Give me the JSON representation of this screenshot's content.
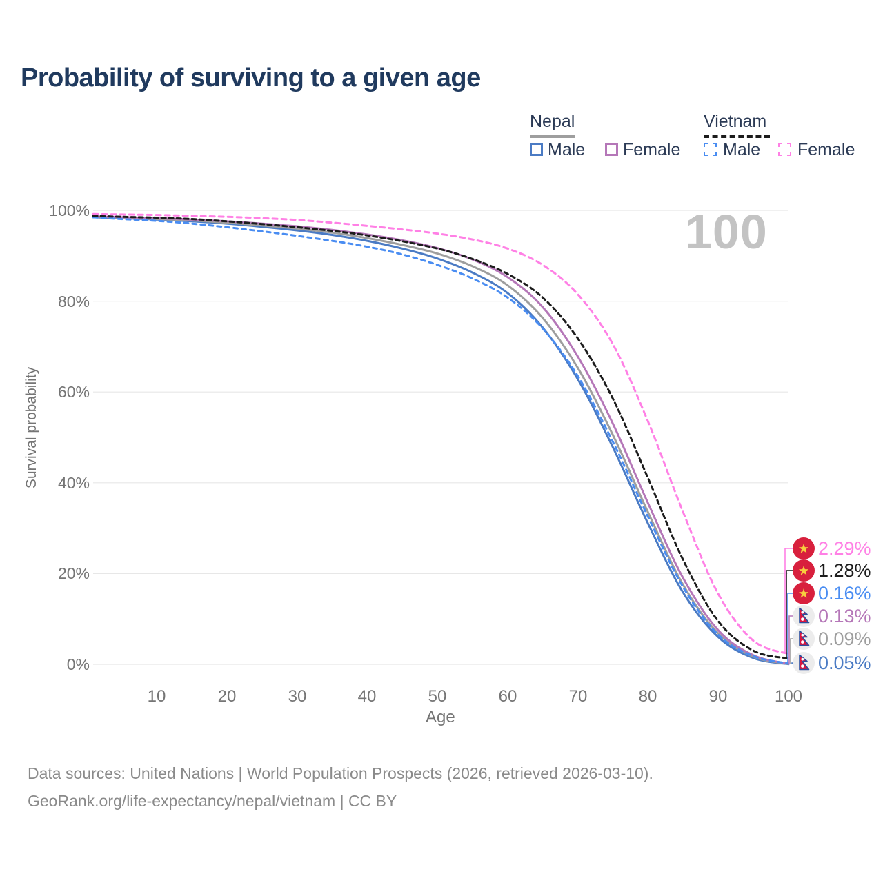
{
  "title": "Probability of surviving to a given age",
  "watermark": "100",
  "legend": {
    "groups": [
      {
        "label": "Nepal",
        "line_style": "solid",
        "line_color": "#9e9e9e",
        "items": [
          {
            "label": "Male",
            "color": "#4b7bc4",
            "dashed": false
          },
          {
            "label": "Female",
            "color": "#b577b8",
            "dashed": false
          }
        ]
      },
      {
        "label": "Vietnam",
        "line_style": "dashed",
        "line_color": "#1c1c1c",
        "items": [
          {
            "label": "Male",
            "color": "#4a8df2",
            "dashed": true
          },
          {
            "label": "Female",
            "color": "#ff80e5",
            "dashed": true
          }
        ]
      }
    ]
  },
  "axes": {
    "y": {
      "label": "Survival probability",
      "ticks": [
        "100%",
        "80%",
        "60%",
        "40%",
        "20%",
        "0%"
      ],
      "tick_values": [
        100,
        80,
        60,
        40,
        20,
        0
      ]
    },
    "x": {
      "label": "Age",
      "ticks": [
        "10",
        "20",
        "30",
        "40",
        "50",
        "60",
        "70",
        "80",
        "90",
        "100"
      ],
      "tick_values": [
        10,
        20,
        30,
        40,
        50,
        60,
        70,
        80,
        90,
        100
      ]
    }
  },
  "end_labels": [
    {
      "value": "2.29%",
      "color": "#ff80e5",
      "flag": "vietnam",
      "series": "Vietnam Female"
    },
    {
      "value": "1.28%",
      "color": "#1d1d1d",
      "flag": "vietnam",
      "series": "Vietnam"
    },
    {
      "value": "0.16%",
      "color": "#4a8df2",
      "flag": "vietnam",
      "series": "Vietnam Male"
    },
    {
      "value": "0.13%",
      "color": "#b577b8",
      "flag": "nepal",
      "series": "Nepal Female"
    },
    {
      "value": "0.09%",
      "color": "#9e9e9e",
      "flag": "nepal",
      "series": "Nepal"
    },
    {
      "value": "0.05%",
      "color": "#4b7bc4",
      "flag": "nepal",
      "series": "Nepal Male"
    }
  ],
  "footer": {
    "line1": "Data sources: United Nations | World Population Prospects (2026, retrieved 2026-03-10).",
    "line2": "GeoRank.org/life-expectancy/nepal/vietnam | CC BY"
  },
  "chart_data": {
    "type": "line",
    "title": "Probability of surviving to a given age",
    "xlabel": "Age",
    "ylabel": "Survival probability",
    "xlim": [
      0,
      100
    ],
    "ylim": [
      0,
      100
    ],
    "grid": "horizontal",
    "legend_position": "top-right",
    "x": [
      1,
      5,
      10,
      15,
      20,
      25,
      30,
      35,
      40,
      45,
      50,
      55,
      60,
      65,
      70,
      75,
      80,
      85,
      90,
      95,
      100
    ],
    "series": [
      {
        "name": "Nepal Male",
        "country": "Nepal",
        "sex": "Male",
        "color": "#4b7bc4",
        "dashed": false,
        "end_label": "0.05%",
        "values": [
          98.5,
          98.3,
          98.0,
          97.6,
          97.1,
          96.4,
          95.6,
          94.6,
          93.3,
          91.6,
          89.4,
          86.3,
          81.8,
          74.2,
          62.8,
          47.8,
          31.0,
          15.8,
          6.0,
          1.4,
          0.05
        ]
      },
      {
        "name": "Nepal",
        "country": "Nepal",
        "sex": "Both",
        "color": "#9e9e9e",
        "dashed": false,
        "end_label": "0.09%",
        "values": [
          98.6,
          98.4,
          98.1,
          97.8,
          97.3,
          96.7,
          96.0,
          95.1,
          93.9,
          92.4,
          90.5,
          87.7,
          83.5,
          76.3,
          65.3,
          50.5,
          33.5,
          17.5,
          6.8,
          1.7,
          0.09
        ]
      },
      {
        "name": "Nepal Female",
        "country": "Nepal",
        "sex": "Female",
        "color": "#b577b8",
        "dashed": false,
        "end_label": "0.13%",
        "values": [
          98.7,
          98.5,
          98.3,
          98.0,
          97.6,
          97.1,
          96.5,
          95.7,
          94.7,
          93.4,
          91.7,
          89.2,
          85.3,
          78.7,
          67.8,
          53.0,
          35.5,
          19.0,
          7.5,
          2.0,
          0.13
        ]
      },
      {
        "name": "Vietnam Male",
        "country": "Vietnam",
        "sex": "Male",
        "color": "#4a8df2",
        "dashed": true,
        "end_label": "0.16%",
        "values": [
          98.5,
          98.1,
          97.7,
          97.1,
          96.3,
          95.4,
          94.4,
          93.3,
          92.0,
          90.3,
          88.0,
          85.0,
          80.8,
          74.0,
          63.5,
          49.0,
          32.5,
          17.0,
          6.5,
          1.8,
          0.16
        ]
      },
      {
        "name": "Vietnam",
        "country": "Vietnam",
        "sex": "Both",
        "color": "#1c1c1c",
        "dashed": true,
        "end_label": "1.28%",
        "values": [
          98.8,
          98.6,
          98.4,
          98.1,
          97.6,
          97.0,
          96.3,
          95.5,
          94.5,
          93.2,
          91.6,
          89.3,
          86.0,
          80.8,
          71.8,
          58.5,
          41.0,
          23.0,
          9.5,
          3.0,
          1.28
        ]
      },
      {
        "name": "Vietnam Female",
        "country": "Vietnam",
        "sex": "Female",
        "color": "#ff80e5",
        "dashed": true,
        "end_label": "2.29%",
        "values": [
          99.2,
          99.1,
          99.0,
          98.8,
          98.6,
          98.3,
          97.9,
          97.3,
          96.6,
          95.8,
          94.9,
          93.6,
          91.6,
          88.0,
          81.5,
          70.5,
          53.5,
          33.5,
          15.5,
          5.2,
          2.29
        ]
      }
    ]
  }
}
